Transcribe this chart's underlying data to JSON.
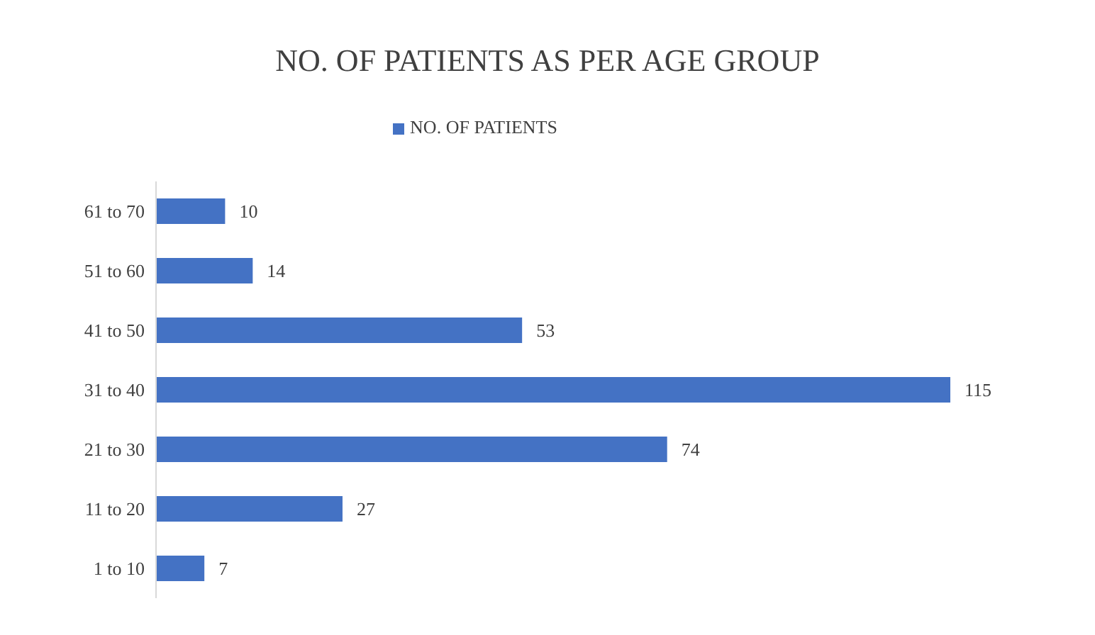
{
  "chart_data": {
    "type": "bar",
    "title": "NO. OF PATIENTS AS PER AGE GROUP",
    "orientation": "horizontal",
    "categories": [
      "61 to 70",
      "51 to 60",
      "41 to 50",
      "31 to 40",
      "21 to 30",
      "11 to 20",
      "1 to 10"
    ],
    "series": [
      {
        "name": "NO. OF PATIENTS",
        "color": "#4472c4",
        "values": [
          10,
          14,
          53,
          115,
          74,
          27,
          7
        ]
      }
    ],
    "data_labels": true,
    "legend": "top",
    "grid": false
  }
}
